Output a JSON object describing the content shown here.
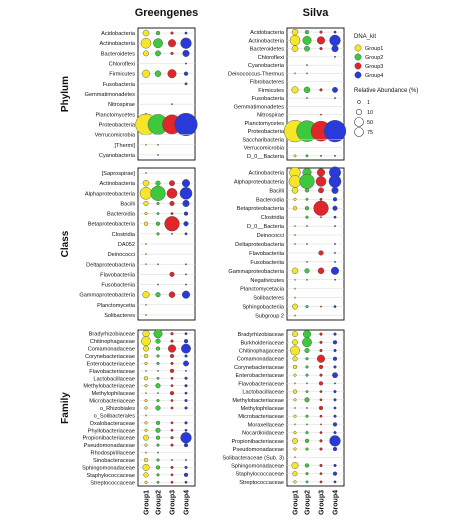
{
  "chart_data": {
    "type": "scatter",
    "titles": [
      "Greengenes",
      "Silva"
    ],
    "groups": [
      "Group1",
      "Group2",
      "Group3",
      "Group4"
    ],
    "group_colors": [
      "#f5e62a",
      "#3ec83e",
      "#e0262a",
      "#2a3ad8"
    ],
    "ranks": [
      "Phylum",
      "Class",
      "Family"
    ],
    "legend": {
      "title_color": "DNA_kit",
      "title_size": "Relative Abundance (%)",
      "size_values": [
        1,
        10,
        50,
        75
      ]
    },
    "panels": {
      "Greengenes": {
        "Phylum": [
          {
            "taxon": "Acidobacteria",
            "values": [
              5,
              2,
              1,
              0.5
            ]
          },
          {
            "taxon": "Actinobacteria",
            "values": [
              14,
              12,
              8,
              16
            ]
          },
          {
            "taxon": "Bacteroidetes",
            "values": [
              4,
              4,
              1,
              6
            ]
          },
          {
            "taxon": "Chloroflexi",
            "values": [
              0,
              0,
              0,
              0.3
            ]
          },
          {
            "taxon": "Firmicutes",
            "values": [
              8,
              5,
              10,
              2
            ]
          },
          {
            "taxon": "Fusobacteria",
            "values": [
              0,
              0,
              0,
              0.5
            ]
          },
          {
            "taxon": "Gemmatimonadetes",
            "values": [
              0,
              0,
              0,
              0
            ]
          },
          {
            "taxon": "Nitrospirae",
            "values": [
              0,
              0,
              0.3,
              0
            ]
          },
          {
            "taxon": "Planctomycetes",
            "values": [
              0.5,
              0,
              0,
              0.3
            ]
          },
          {
            "taxon": "Proteobacteria",
            "values": [
              60,
              55,
              50,
              70
            ]
          },
          {
            "taxon": "Verrucomicrobia",
            "values": [
              0,
              0,
              0,
              0
            ]
          },
          {
            "taxon": "[Thermi]",
            "values": [
              0.3,
              0.3,
              0,
              0
            ]
          },
          {
            "taxon": "Cyanobacteria",
            "values": [
              0,
              0.3,
              0,
              0
            ]
          }
        ],
        "Class": [
          {
            "taxon": "[Saprospirae]",
            "values": [
              0.3,
              0,
              0,
              0
            ]
          },
          {
            "taxon": "Actinobacteria",
            "values": [
              5,
              3,
              4,
              8
            ]
          },
          {
            "taxon": "Alphaproteobacteria",
            "values": [
              20,
              30,
              14,
              20
            ]
          },
          {
            "taxon": "Bacilli",
            "values": [
              3,
              1,
              3,
              6
            ]
          },
          {
            "taxon": "Bacteroidia",
            "values": [
              1,
              0.5,
              0.5,
              2
            ]
          },
          {
            "taxon": "Betaproteobacteria",
            "values": [
              2,
              2,
              30,
              3
            ]
          },
          {
            "taxon": "Clostridia",
            "values": [
              0,
              1,
              0.3,
              0.5
            ]
          },
          {
            "taxon": "DA052",
            "values": [
              0.3,
              0,
              0,
              0
            ]
          },
          {
            "taxon": "Deinococci",
            "values": [
              0.3,
              0,
              0,
              0
            ]
          },
          {
            "taxon": "Deltaproteobacteria",
            "values": [
              0.3,
              0.3,
              0,
              0.3
            ]
          },
          {
            "taxon": "Flavobacteriia",
            "values": [
              0,
              0,
              3,
              0.3
            ]
          },
          {
            "taxon": "Fusobacteriia",
            "values": [
              0,
              0.3,
              0,
              0.3
            ]
          },
          {
            "taxon": "Gammaproteobacteria",
            "values": [
              6,
              3,
              5,
              8
            ]
          },
          {
            "taxon": "Planctomycetia",
            "values": [
              0.3,
              0,
              0,
              0
            ]
          },
          {
            "taxon": "Solibacteres",
            "values": [
              0.3,
              0,
              0,
              0
            ]
          }
        ],
        "Family": [
          {
            "taxon": "Bradyrhizobiaceae",
            "values": [
              6,
              10,
              1,
              0.5
            ]
          },
          {
            "taxon": "Chitinophagaceae",
            "values": [
              12,
              3,
              1,
              2
            ]
          },
          {
            "taxon": "Comamonadaceae",
            "values": [
              4,
              2,
              8,
              12
            ]
          },
          {
            "taxon": "Corynebacteriaceae",
            "values": [
              2,
              1,
              2,
              1
            ]
          },
          {
            "taxon": "Enterobacteriaceae",
            "values": [
              1,
              1,
              1,
              4
            ]
          },
          {
            "taxon": "Flavobacteriaceae",
            "values": [
              0.3,
              0.3,
              2,
              0.3
            ]
          },
          {
            "taxon": "Lactobacillaceae",
            "values": [
              2,
              0.5,
              0.5,
              1
            ]
          },
          {
            "taxon": "Methylobacteriaceae",
            "values": [
              1,
              3,
              0.5,
              1
            ]
          },
          {
            "taxon": "Methylophilaceae",
            "values": [
              0.3,
              0.3,
              2,
              0.5
            ]
          },
          {
            "taxon": "Microbacteriaceae",
            "values": [
              1,
              1,
              0.5,
              1
            ]
          },
          {
            "taxon": "o_Rhizobiales",
            "values": [
              1,
              3,
              0.5,
              1
            ]
          },
          {
            "taxon": "o_Solibacterales",
            "values": [
              0.3,
              0,
              0,
              0
            ]
          },
          {
            "taxon": "Oxalobacteraceae",
            "values": [
              1,
              2,
              0.5,
              1
            ]
          },
          {
            "taxon": "Phyllobacteriaceae",
            "values": [
              1,
              3,
              0.5,
              0.5
            ]
          },
          {
            "taxon": "Propionibacteriaceae",
            "values": [
              4,
              2,
              1,
              16
            ]
          },
          {
            "taxon": "Pseudomonadaceae",
            "values": [
              1,
              1,
              1,
              2
            ]
          },
          {
            "taxon": "Rhodospirillaceae",
            "values": [
              0.3,
              0.3,
              0,
              0
            ]
          },
          {
            "taxon": "Sinobacteraceae",
            "values": [
              2,
              1,
              0.3,
              0.3
            ]
          },
          {
            "taxon": "Sphingomonadaceae",
            "values": [
              6,
              2,
              1,
              1
            ]
          },
          {
            "taxon": "Staphylococcaceae",
            "values": [
              3,
              1,
              0.5,
              2
            ]
          },
          {
            "taxon": "Streptococcaceae",
            "values": [
              1,
              0.5,
              0.5,
              0.5
            ]
          }
        ]
      },
      "Silva": {
        "Phylum": [
          {
            "taxon": "Acidobacteria",
            "values": [
              5,
              2,
              1,
              0.5
            ]
          },
          {
            "taxon": "Actinobacteria",
            "values": [
              14,
              10,
              8,
              16
            ]
          },
          {
            "taxon": "Bacteroidetes",
            "values": [
              5,
              4,
              1,
              6
            ]
          },
          {
            "taxon": "Chloroflexi",
            "values": [
              0,
              0,
              0,
              0.3
            ]
          },
          {
            "taxon": "Cyanobacteria",
            "values": [
              0,
              0.3,
              0,
              0
            ]
          },
          {
            "taxon": "Deinococcus-Thermus",
            "values": [
              0.3,
              0.3,
              0,
              0
            ]
          },
          {
            "taxon": "Fibrobacteres",
            "values": [
              0,
              0,
              0,
              0
            ]
          },
          {
            "taxon": "Firmicutes",
            "values": [
              6,
              5,
              1,
              4
            ]
          },
          {
            "taxon": "Fusobacteria",
            "values": [
              0,
              0.3,
              0,
              0.3
            ]
          },
          {
            "taxon": "Gemmatimonadetes",
            "values": [
              0,
              0,
              0,
              0
            ]
          },
          {
            "taxon": "Nitrospirae",
            "values": [
              0,
              0,
              0.3,
              0
            ]
          },
          {
            "taxon": "Planctomycetes",
            "values": [
              0.5,
              0,
              0,
              0.3
            ]
          },
          {
            "taxon": "Proteobacteria",
            "values": [
              65,
              60,
              55,
              65
            ]
          },
          {
            "taxon": "Saccharibacteria",
            "values": [
              0,
              0,
              0,
              0
            ]
          },
          {
            "taxon": "Verrucomicrobia",
            "values": [
              0,
              0,
              0,
              0
            ]
          },
          {
            "taxon": "D_0__Bacteria",
            "values": [
              0.5,
              0.5,
              0.3,
              0.3
            ]
          }
        ],
        "Class": [
          {
            "taxon": "Actinobacteria",
            "values": [
              16,
              10,
              8,
              18
            ]
          },
          {
            "taxon": "Alphaproteobacteria",
            "values": [
              20,
              30,
              14,
              20
            ]
          },
          {
            "taxon": "Bacilli",
            "values": [
              5,
              2,
              4,
              6
            ]
          },
          {
            "taxon": "Bacteroidia",
            "values": [
              1,
              0.5,
              0.5,
              2
            ]
          },
          {
            "taxon": "Betaproteobacteria",
            "values": [
              2,
              2,
              30,
              3
            ]
          },
          {
            "taxon": "Clostridia",
            "values": [
              0,
              1,
              0.3,
              0.5
            ]
          },
          {
            "taxon": "D_0__Bacteria",
            "values": [
              0.3,
              0.3,
              0,
              0.3
            ]
          },
          {
            "taxon": "Deinococci",
            "values": [
              0.3,
              0,
              0,
              0
            ]
          },
          {
            "taxon": "Deltaproteobacteria",
            "values": [
              0.3,
              0.3,
              0,
              0.3
            ]
          },
          {
            "taxon": "Flavobacteriia",
            "values": [
              0,
              0,
              3,
              0.3
            ]
          },
          {
            "taxon": "Fusobacteriia",
            "values": [
              0,
              0.3,
              0,
              0.3
            ]
          },
          {
            "taxon": "Gammaproteobacteria",
            "values": [
              5,
              3,
              5,
              8
            ]
          },
          {
            "taxon": "Negativicutes",
            "values": [
              0.3,
              0.3,
              0,
              0.3
            ]
          },
          {
            "taxon": "Planctomycetacia",
            "values": [
              0.3,
              0,
              0,
              0
            ]
          },
          {
            "taxon": "Solibacteres",
            "values": [
              0.3,
              0,
              0,
              0
            ]
          },
          {
            "taxon": "Sphingobacteriia",
            "values": [
              4,
              1,
              0.3,
              0.5
            ]
          },
          {
            "taxon": "Subgroup 2",
            "values": [
              0.3,
              0,
              0,
              0
            ]
          }
        ],
        "Family": [
          {
            "taxon": "Bradyrhizobiaceae",
            "values": [
              4,
              8,
              1,
              1
            ]
          },
          {
            "taxon": "Burkholderiaceae",
            "values": [
              4,
              12,
              1,
              2
            ]
          },
          {
            "taxon": "Chitinophagaceae",
            "values": [
              12,
              3,
              1,
              1
            ]
          },
          {
            "taxon": "Comamonadaceae",
            "values": [
              3,
              1,
              8,
              2
            ]
          },
          {
            "taxon": "Corynebacteriaceae",
            "values": [
              2,
              1,
              2,
              1
            ]
          },
          {
            "taxon": "Enterobacteriaceae",
            "values": [
              1,
              1,
              1,
              4
            ]
          },
          {
            "taxon": "Flavobacteriaceae",
            "values": [
              0.3,
              0.3,
              2,
              0.3
            ]
          },
          {
            "taxon": "Lactobacillaceae",
            "values": [
              2,
              0.5,
              0.5,
              1
            ]
          },
          {
            "taxon": "Methylobacteriaceae",
            "values": [
              1,
              3,
              0.5,
              1
            ]
          },
          {
            "taxon": "Methylophilaceae",
            "values": [
              0.3,
              0.3,
              2,
              0.5
            ]
          },
          {
            "taxon": "Microbacteriaceae",
            "values": [
              1,
              1,
              0.5,
              1
            ]
          },
          {
            "taxon": "Moraxellaceae",
            "values": [
              0.3,
              0.3,
              0.3,
              2
            ]
          },
          {
            "taxon": "Nocardioidaceae",
            "values": [
              1,
              1,
              0.5,
              1
            ]
          },
          {
            "taxon": "Propionibacteriaceae",
            "values": [
              4,
              2,
              1,
              16
            ]
          },
          {
            "taxon": "Pseudomonadaceae",
            "values": [
              1,
              1,
              1,
              2
            ]
          },
          {
            "taxon": "Solibacteraceae (Sub. 3)",
            "values": [
              0.3,
              0,
              0,
              0
            ]
          },
          {
            "taxon": "Sphingomonadaceae",
            "values": [
              6,
              2,
              1,
              1
            ]
          },
          {
            "taxon": "Staphylococcaceae",
            "values": [
              3,
              1,
              0.5,
              2
            ]
          },
          {
            "taxon": "Streptococcaceae",
            "values": [
              1,
              0.5,
              0.5,
              0.5
            ]
          }
        ]
      }
    }
  }
}
